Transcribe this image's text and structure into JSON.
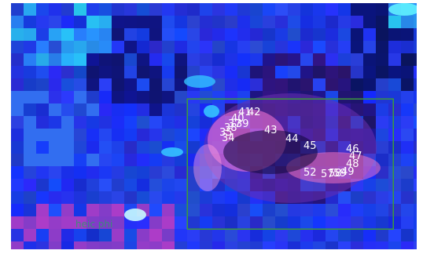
{
  "image": {
    "background_color": "#1a2fe0",
    "accent_cyan": "#35c3ff",
    "roi_box_color": "#3c9a3c",
    "label_color": "#ffffff",
    "label_numbers": [
      "41",
      "42",
      "40",
      "37",
      "38",
      "39",
      "35",
      "34",
      "43",
      "44",
      "45",
      "46",
      "47",
      "48",
      "52",
      "57",
      "59",
      "58",
      "49"
    ],
    "faint_text": "heic phi"
  }
}
